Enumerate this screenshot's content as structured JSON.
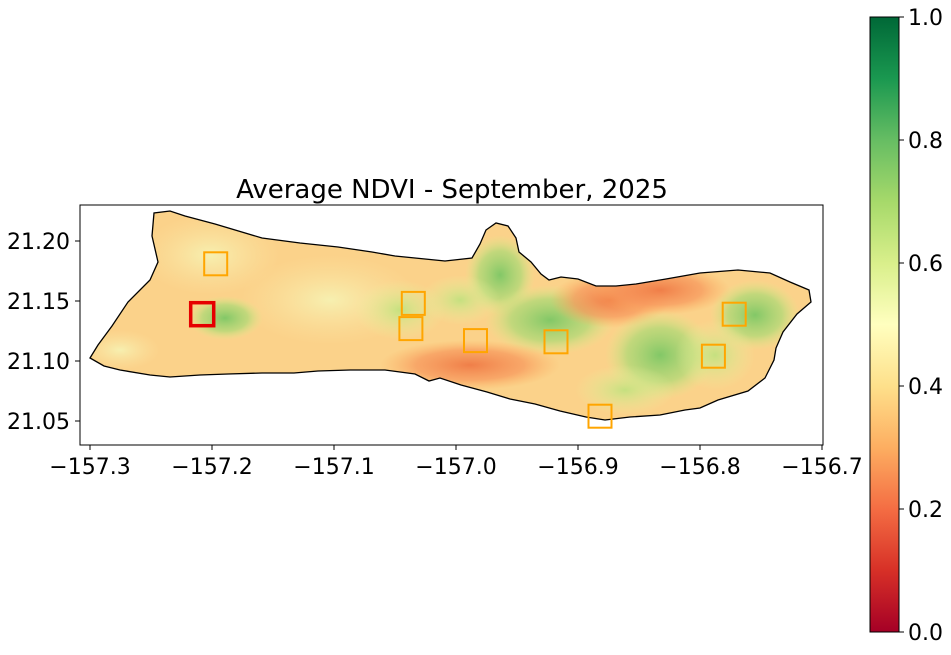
{
  "title": "Average NDVI - September, 2025",
  "map": {
    "x_ticks": [
      "−157.3",
      "−157.2",
      "−157.1",
      "−157.0",
      "−156.9",
      "−156.8",
      "−156.7"
    ],
    "y_ticks": [
      "21.20",
      "21.15",
      "21.10",
      "21.05"
    ],
    "x_range": [
      -157.32,
      -156.7
    ],
    "y_range": [
      21.03,
      21.23
    ],
    "markers": [
      {
        "lon": -157.208,
        "lat": 21.139,
        "color": "#e60000",
        "role": "selected"
      },
      {
        "lon": -157.197,
        "lat": 21.181,
        "color": "#ffa500"
      },
      {
        "lon": -157.035,
        "lat": 21.148,
        "color": "#ffa500"
      },
      {
        "lon": -157.037,
        "lat": 21.127,
        "color": "#ffa500"
      },
      {
        "lon": -156.984,
        "lat": 21.117,
        "color": "#ffa500"
      },
      {
        "lon": -156.918,
        "lat": 21.116,
        "color": "#ffa500"
      },
      {
        "lon": -156.882,
        "lat": 21.054,
        "color": "#ffa500"
      },
      {
        "lon": -156.789,
        "lat": 21.104,
        "color": "#ffa500"
      },
      {
        "lon": -156.772,
        "lat": 21.139,
        "color": "#ffa500"
      }
    ]
  },
  "colorbar": {
    "colormap": "RdYlGn",
    "range": [
      0,
      1
    ],
    "ticks": [
      "0.0",
      "0.2",
      "0.4",
      "0.6",
      "0.8",
      "1.0"
    ]
  }
}
